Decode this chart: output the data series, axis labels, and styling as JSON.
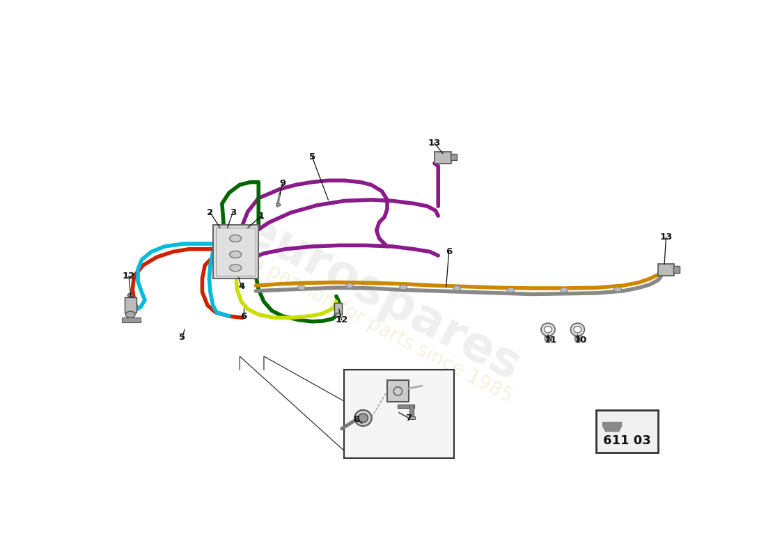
{
  "background_color": "#ffffff",
  "part_number": "611 03",
  "figsize": [
    11.0,
    8.0
  ],
  "dpi": 100,
  "colors": {
    "purple": "#8B1A8B",
    "red": "#CC2200",
    "cyan": "#00BBDD",
    "dark_green": "#006600",
    "yellow_green": "#CCDD00",
    "gold": "#CC8800",
    "gray": "#888888",
    "light_gray": "#BBBBBB",
    "dark_gray": "#444444",
    "box_fill": "#E0E0E0",
    "box_edge": "#666666"
  },
  "lw_pipe": 4.0,
  "lw_leader": 0.9
}
